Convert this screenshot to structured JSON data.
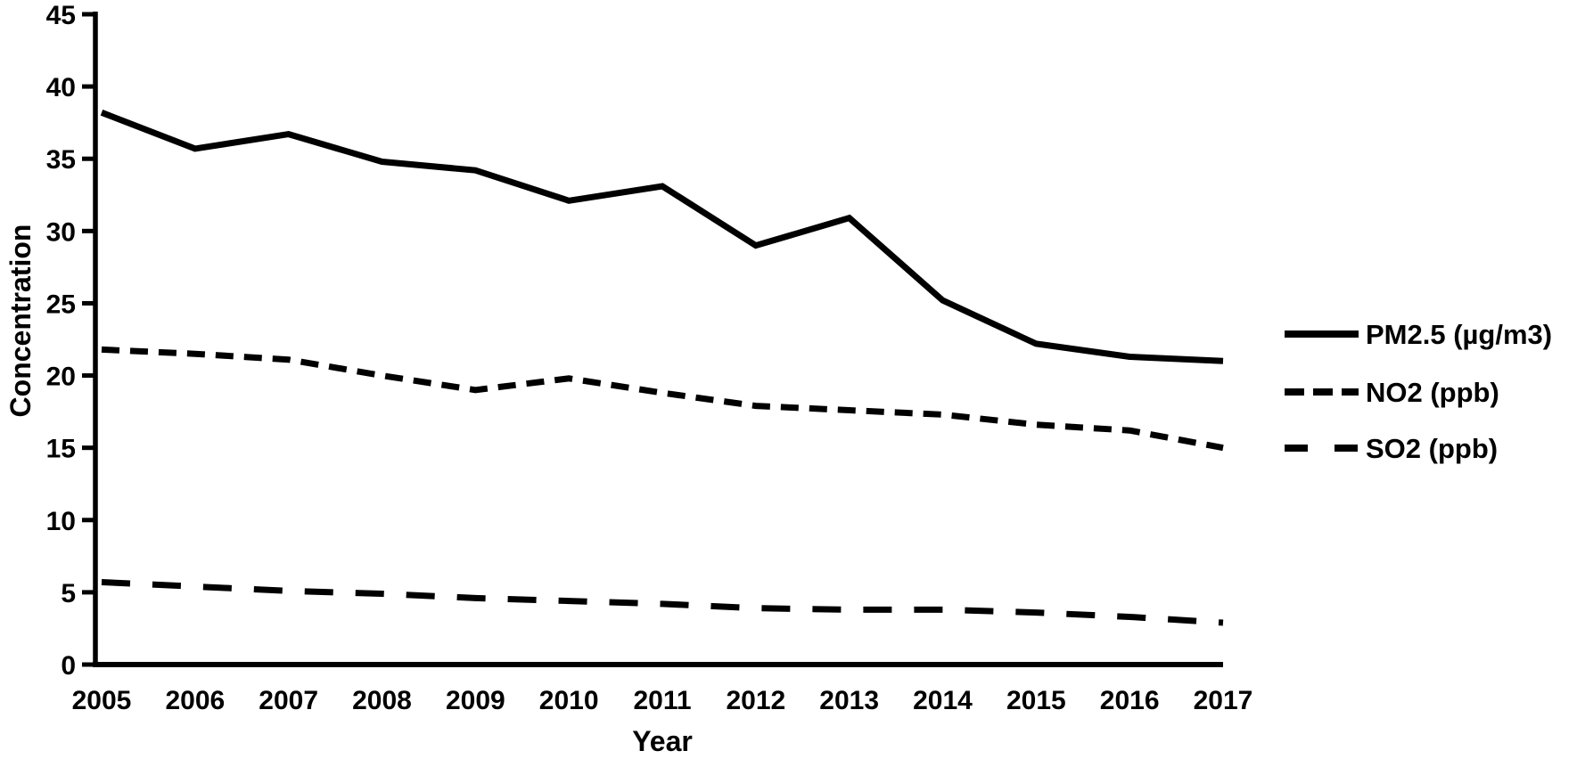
{
  "figure": {
    "background": "#ffffff",
    "line_color": "#000000",
    "text_color": "#000000"
  },
  "chart_data": {
    "type": "line",
    "title": "",
    "xlabel": "Year",
    "ylabel": "Concentration",
    "x": [
      2005,
      2006,
      2007,
      2008,
      2009,
      2010,
      2011,
      2012,
      2013,
      2014,
      2015,
      2016,
      2017
    ],
    "ylim": [
      0,
      45
    ],
    "yticks": [
      0,
      5,
      10,
      15,
      20,
      25,
      30,
      35,
      40,
      45
    ],
    "grid": false,
    "legend_position": "right",
    "series": [
      {
        "name": "PM2.5 (µg/m3)",
        "line_style": "solid",
        "color": "#000000",
        "values": [
          38.2,
          35.7,
          36.7,
          34.8,
          34.2,
          32.1,
          33.1,
          29.0,
          30.9,
          25.2,
          22.2,
          21.3,
          21.0
        ]
      },
      {
        "name": "NO2 (ppb)",
        "line_style": "short-dash",
        "color": "#000000",
        "values": [
          21.8,
          21.5,
          21.1,
          20.0,
          19.0,
          19.8,
          18.8,
          17.9,
          17.6,
          17.3,
          16.6,
          16.2,
          15.0
        ]
      },
      {
        "name": "SO2 (ppb)",
        "line_style": "long-dash",
        "color": "#000000",
        "values": [
          5.7,
          5.4,
          5.1,
          4.9,
          4.6,
          4.4,
          4.2,
          3.9,
          3.8,
          3.8,
          3.6,
          3.3,
          2.9
        ]
      }
    ]
  }
}
